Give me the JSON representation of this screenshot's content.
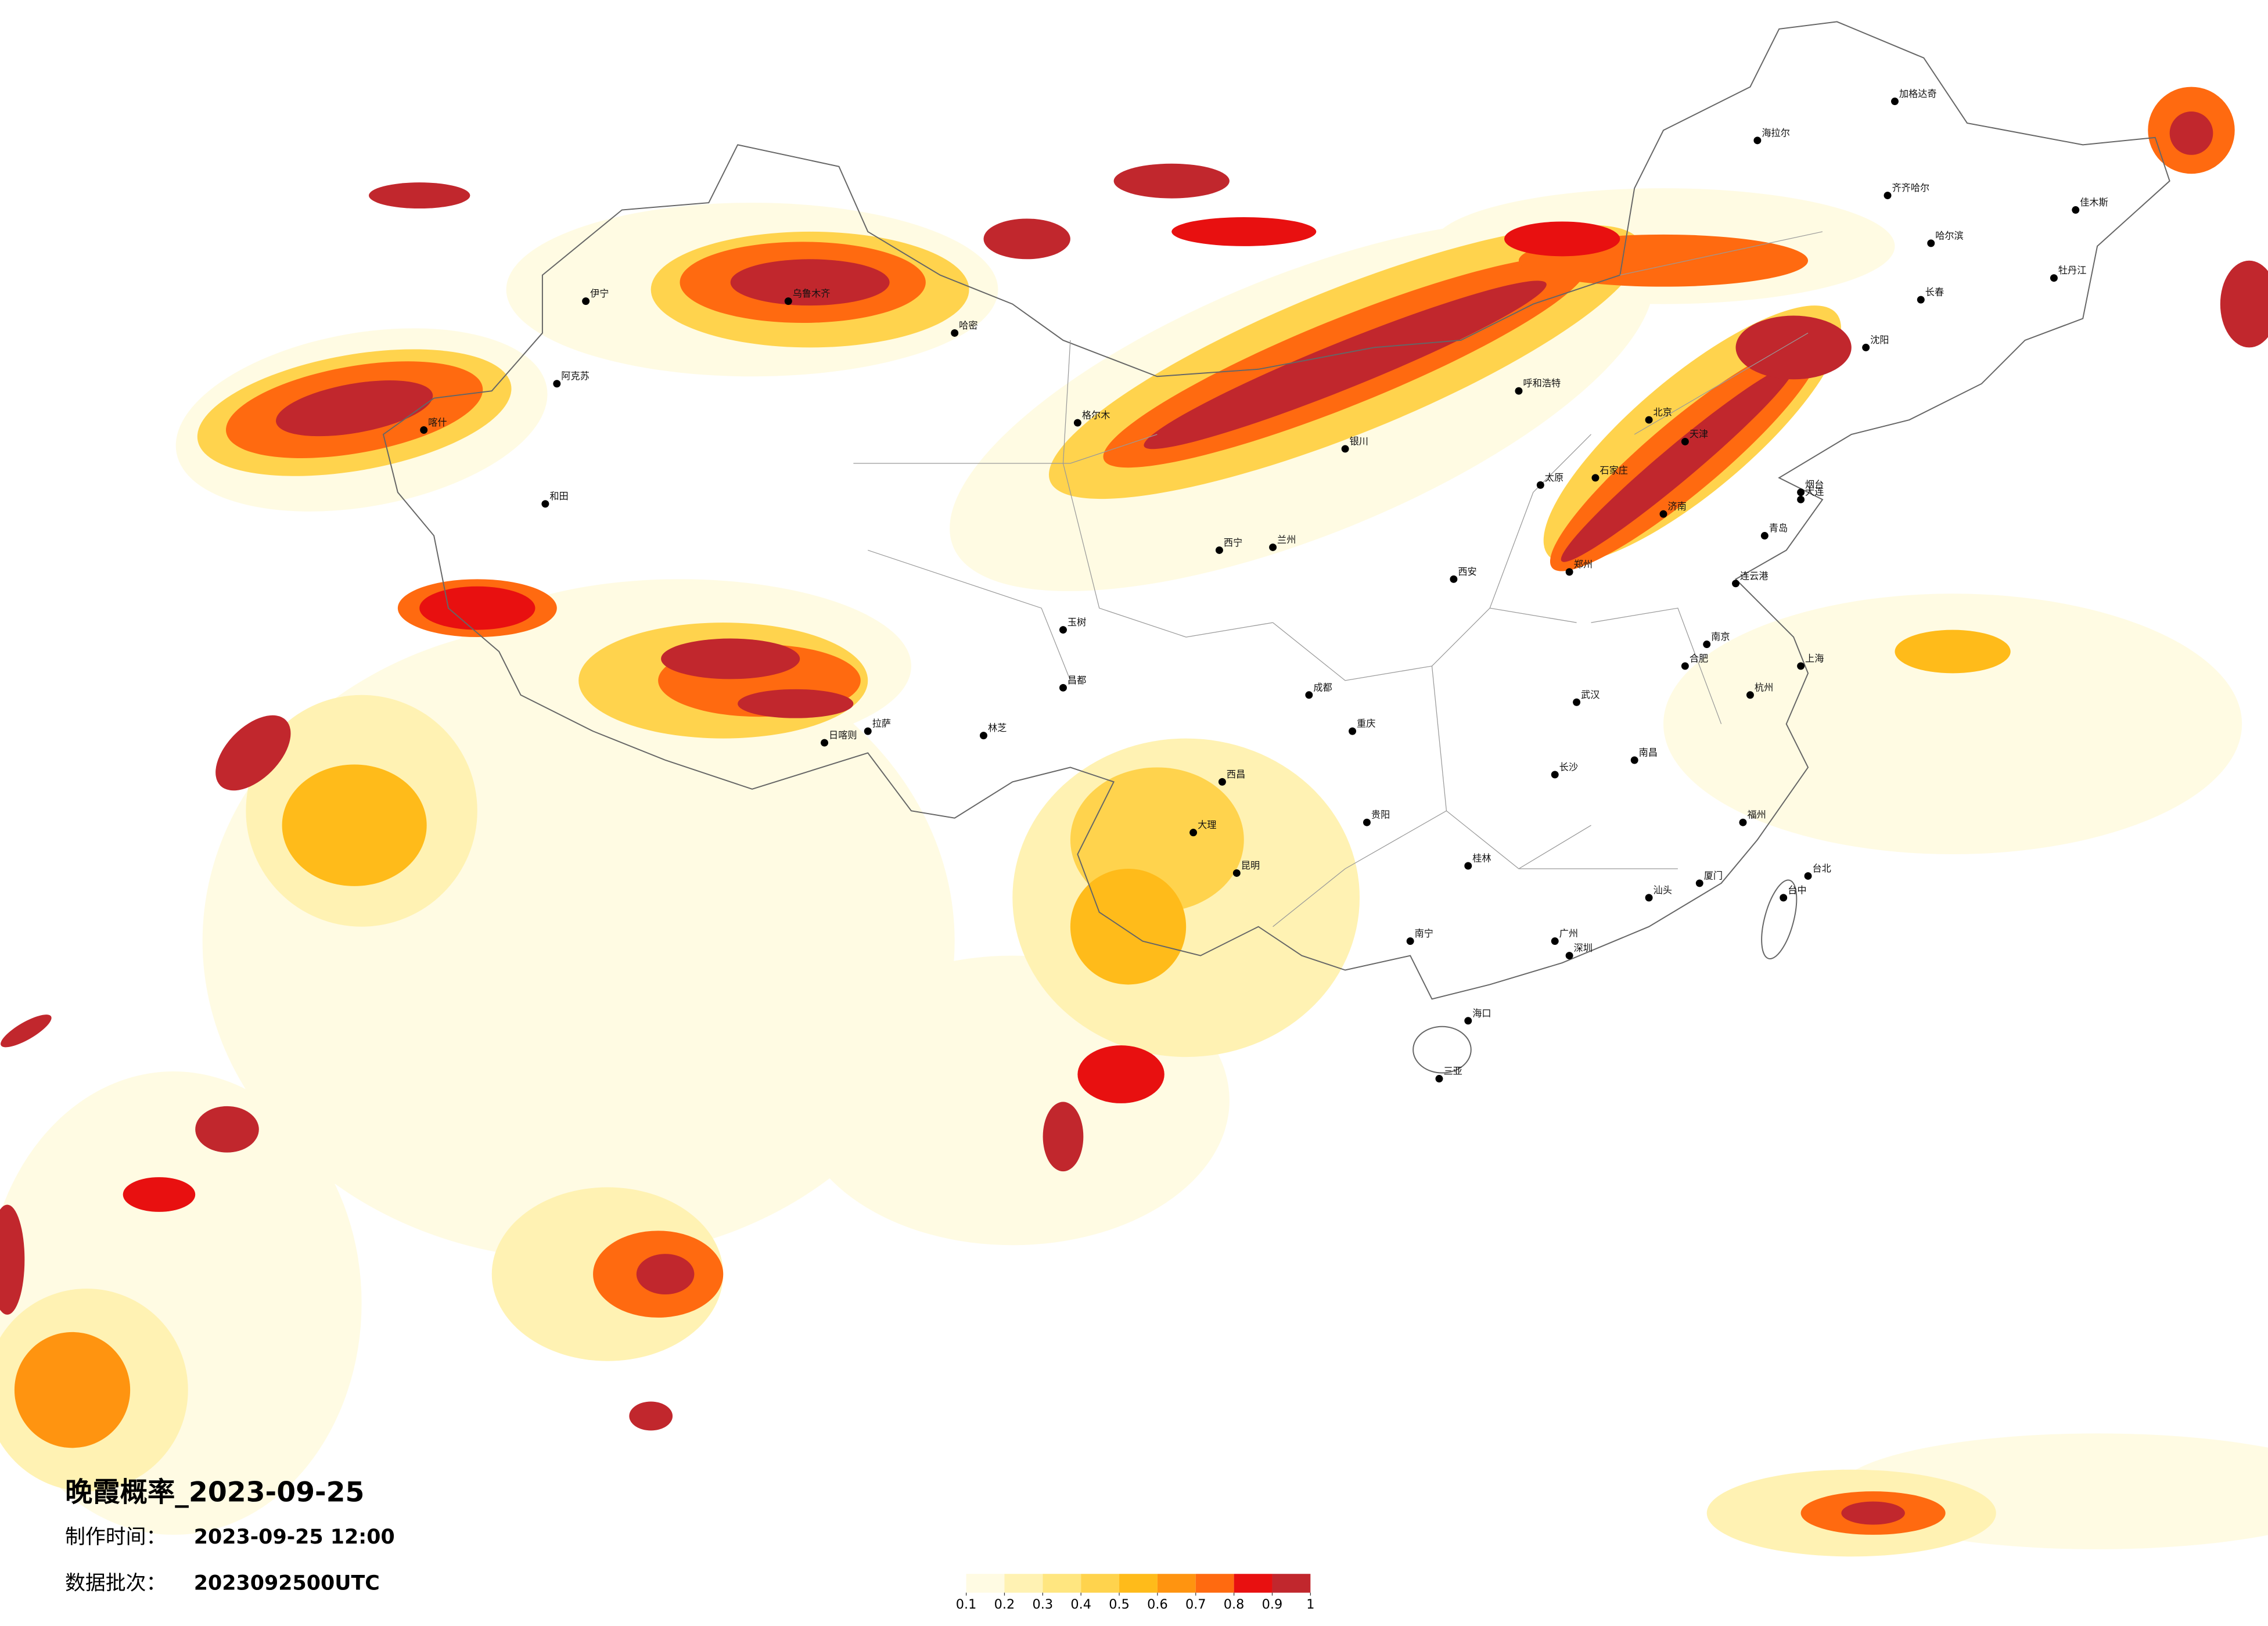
{
  "title": "晚霞概率_2023-09-25",
  "made_label": "制作时间：",
  "made_time": "2023-09-25 12:00",
  "batch_label": "数据批次：",
  "batch": "2023092500UTC",
  "legend": {
    "ticks": [
      0.1,
      0.2,
      0.3,
      0.4,
      0.5,
      0.6,
      0.7,
      0.8,
      0.9,
      1
    ],
    "colors": [
      "#fffbe3",
      "#fff2b3",
      "#ffe680",
      "#ffd34d",
      "#ffbb1a",
      "#ff9410",
      "#ff6a10",
      "#e81010",
      "#c1272d"
    ]
  },
  "cities": [
    "北京",
    "天津",
    "石家庄",
    "太原",
    "呼和浩特",
    "银川",
    "兰州",
    "西宁",
    "西安",
    "郑州",
    "济南",
    "青岛",
    "烟台",
    "连云港",
    "南京",
    "合肥",
    "上海",
    "杭州",
    "福州",
    "厦门",
    "台北",
    "台中",
    "南昌",
    "武汉",
    "长沙",
    "广州",
    "深圳",
    "汕头",
    "南宁",
    "桂林",
    "海口",
    "三亚",
    "贵阳",
    "重庆",
    "成都",
    "昆明",
    "大理",
    "西昌",
    "沈阳",
    "大连",
    "长春",
    "哈尔滨",
    "齐齐哈尔",
    "海拉尔",
    "加格达奇",
    "佳木斯",
    "牡丹江",
    "乌鲁木齐",
    "伊宁",
    "阿克苏",
    "喀什",
    "和田",
    "哈密",
    "格尔木",
    "玉树",
    "昌都",
    "林芝",
    "拉萨",
    "日喀则"
  ]
}
